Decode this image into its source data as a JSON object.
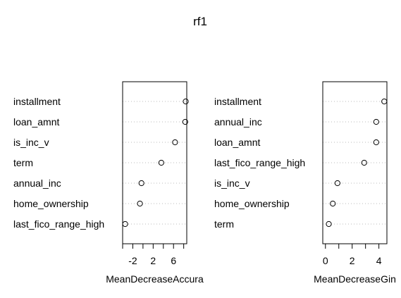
{
  "title": "rf1",
  "chart_data": [
    {
      "type": "scatter",
      "style": "dotchart",
      "xlabel": "MeanDecreaseAccura",
      "xlim": [
        -4.0,
        8.6
      ],
      "xticks": [
        -2,
        2,
        6
      ],
      "categories": [
        "installment",
        "loan_amnt",
        "is_inc_v",
        "term",
        "annual_inc",
        "home_ownership",
        "last_fico_range_high"
      ],
      "values": [
        8.4,
        8.3,
        6.3,
        3.6,
        -0.3,
        -0.6,
        -3.5
      ],
      "grid": "dotted horizontal",
      "marker": "open-circle"
    },
    {
      "type": "scatter",
      "style": "dotchart",
      "xlabel": "MeanDecreaseGin",
      "xlim": [
        -0.2,
        4.6
      ],
      "xticks": [
        0,
        2,
        4
      ],
      "categories": [
        "installment",
        "annual_inc",
        "loan_amnt",
        "last_fico_range_high",
        "is_inc_v",
        "home_ownership",
        "term"
      ],
      "values": [
        4.4,
        3.8,
        3.8,
        2.9,
        0.9,
        0.55,
        0.25
      ],
      "grid": "dotted horizontal",
      "marker": "open-circle"
    }
  ]
}
